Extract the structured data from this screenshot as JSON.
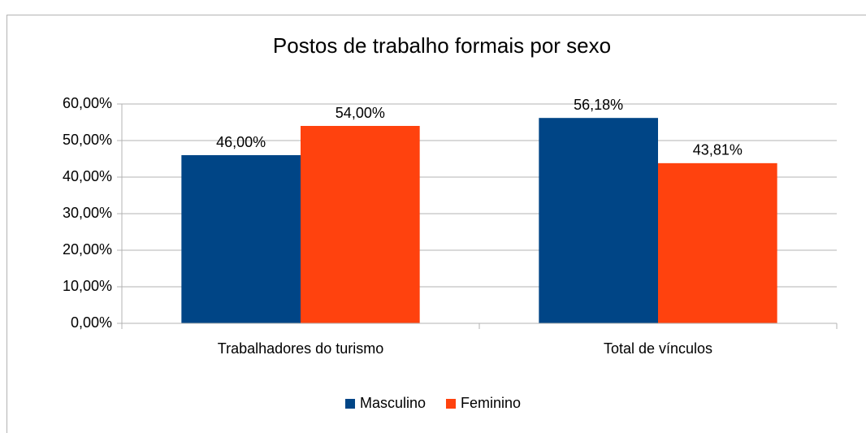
{
  "chart_data": {
    "type": "bar",
    "title": "Postos de trabalho formais por sexo",
    "categories": [
      "Trabalhadores do turismo",
      "Total de vínculos"
    ],
    "series": [
      {
        "name": "Masculino",
        "color": "#004586",
        "values": [
          46,
          56.18
        ],
        "value_labels": [
          "46,00%",
          "56,18%"
        ]
      },
      {
        "name": "Feminino",
        "color": "#ff420e",
        "values": [
          54,
          43.81
        ],
        "value_labels": [
          "54,00%",
          "43,81%"
        ]
      }
    ],
    "ylim": [
      0,
      60
    ],
    "yticks": [
      {
        "value": 0,
        "label": "0,00%"
      },
      {
        "value": 10,
        "label": "10,00%"
      },
      {
        "value": 20,
        "label": "20,00%"
      },
      {
        "value": 30,
        "label": "30,00%"
      },
      {
        "value": 40,
        "label": "40,00%"
      },
      {
        "value": 50,
        "label": "50,00%"
      },
      {
        "value": 60,
        "label": "60,00%"
      }
    ],
    "grid": true,
    "legend": "bottom"
  }
}
